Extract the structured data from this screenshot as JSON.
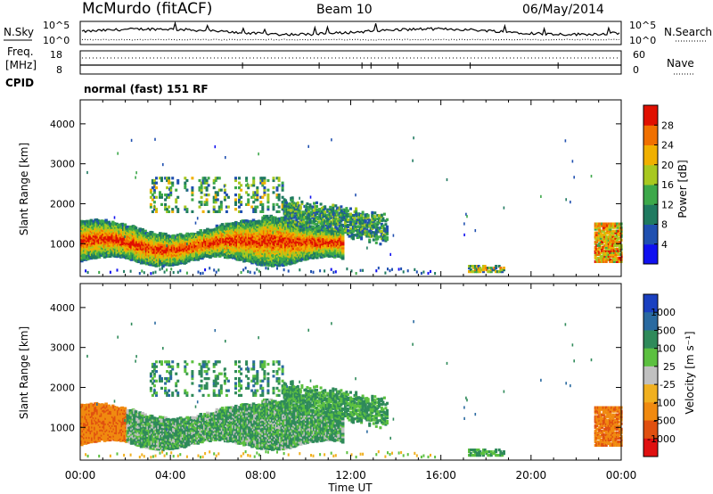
{
  "header": {
    "station": "McMurdo (fitACF)",
    "beam": "Beam 10",
    "date": "06/May/2014"
  },
  "noise_panel": {
    "left_label": "N.Sky",
    "right_label": "N.Search",
    "left_ticks": [
      "10^5",
      "10^0"
    ],
    "right_ticks": [
      "10^5",
      "10^0"
    ]
  },
  "freq_panel": {
    "left_label_1": "Freq.",
    "left_label_2": "[MHz]",
    "left_ticks": [
      "18",
      "8"
    ],
    "right_label": "Nave",
    "right_ticks": [
      "60",
      "0"
    ]
  },
  "cpid": {
    "label": "CPID",
    "text": "normal (fast) 151 RF"
  },
  "chart_data": [
    {
      "type": "heatmap",
      "name": "power",
      "ylabel": "Slant Range [km]",
      "xlabel": "Time UT",
      "x_ticks": [
        "00:00",
        "04:00",
        "08:00",
        "12:00",
        "16:00",
        "20:00",
        "00:00"
      ],
      "xlim_hours": [
        0,
        24
      ],
      "y_ticks": [
        1000,
        2000,
        3000,
        4000
      ],
      "ylim_km": [
        180,
        4600
      ],
      "colorbar": {
        "label": "Power [dB]",
        "ticks": [
          4,
          8,
          12,
          16,
          20,
          24,
          28
        ],
        "range": [
          0,
          32
        ],
        "colors": [
          "#1010f0",
          "#2050b0",
          "#207a60",
          "#3da84a",
          "#a8c820",
          "#f0b000",
          "#f07000",
          "#e01000"
        ]
      }
    },
    {
      "type": "heatmap",
      "name": "velocity",
      "ylabel": "Slant Range [km]",
      "xlabel": "Time UT",
      "x_ticks": [
        "00:00",
        "04:00",
        "08:00",
        "12:00",
        "16:00",
        "20:00",
        "00:00"
      ],
      "xlim_hours": [
        0,
        24
      ],
      "y_ticks": [
        1000,
        2000,
        3000,
        4000
      ],
      "ylim_km": [
        180,
        4600
      ],
      "colorbar": {
        "label": "Velocity [m s⁻¹]",
        "ticks": [
          1000,
          500,
          100,
          25,
          -25,
          -100,
          -500,
          -1000
        ],
        "colors": [
          "#1a40c0",
          "#2a6aa0",
          "#2f8a5a",
          "#5cc040",
          "#c0c0c0",
          "#f0b020",
          "#f08a10",
          "#e05010",
          "#e01010"
        ]
      }
    }
  ],
  "xlabel": "Time UT"
}
